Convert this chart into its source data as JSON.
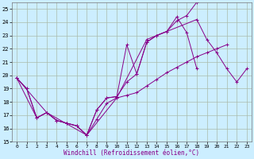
{
  "xlabel": "Windchill (Refroidissement éolien,°C)",
  "bg_color": "#cceeff",
  "grid_color": "#aabbaa",
  "line_color": "#880088",
  "xlim": [
    -0.5,
    23.5
  ],
  "ylim": [
    15,
    25.5
  ],
  "yticks": [
    15,
    16,
    17,
    18,
    19,
    20,
    21,
    22,
    23,
    24,
    25
  ],
  "xticks": [
    0,
    1,
    2,
    3,
    4,
    5,
    6,
    7,
    8,
    9,
    10,
    11,
    12,
    13,
    14,
    15,
    16,
    17,
    18,
    19,
    20,
    21,
    22,
    23
  ],
  "series": [
    {
      "x": [
        0,
        1,
        2,
        3,
        4,
        5,
        6,
        7,
        8,
        9,
        10,
        11,
        12,
        13,
        14,
        15,
        16,
        17,
        18,
        19,
        20,
        21,
        22,
        23
      ],
      "y": [
        19.8,
        19.0,
        16.8,
        17.2,
        16.6,
        16.4,
        16.2,
        15.5,
        16.7,
        17.9,
        18.3,
        18.5,
        18.7,
        19.2,
        19.7,
        20.2,
        20.6,
        21.0,
        21.4,
        21.7,
        22.0,
        22.3,
        null,
        null
      ]
    },
    {
      "x": [
        0,
        1,
        2,
        3,
        4,
        5,
        6,
        7,
        8,
        9,
        10,
        11,
        12,
        13,
        14,
        15,
        16,
        17,
        18,
        19,
        20
      ],
      "y": [
        19.8,
        19.0,
        16.8,
        17.2,
        16.6,
        16.4,
        16.2,
        15.5,
        17.4,
        18.3,
        18.4,
        19.5,
        20.1,
        22.5,
        23.0,
        23.3,
        24.4,
        23.2,
        20.5,
        null,
        null
      ]
    },
    {
      "x": [
        0,
        2,
        3,
        4,
        5,
        6,
        7,
        8,
        9,
        10,
        11,
        12,
        13,
        14,
        15,
        16,
        17,
        18,
        19,
        20
      ],
      "y": [
        19.8,
        16.8,
        17.2,
        16.6,
        16.4,
        16.2,
        15.5,
        17.4,
        18.3,
        18.4,
        22.3,
        20.1,
        22.5,
        23.0,
        23.3,
        24.1,
        24.5,
        25.5,
        25.7,
        null
      ]
    },
    {
      "x": [
        0,
        3,
        7,
        10,
        13,
        18,
        19,
        20,
        21,
        22,
        23
      ],
      "y": [
        19.8,
        17.2,
        15.5,
        18.3,
        22.7,
        24.2,
        22.7,
        21.7,
        20.5,
        19.5,
        20.5
      ]
    }
  ]
}
